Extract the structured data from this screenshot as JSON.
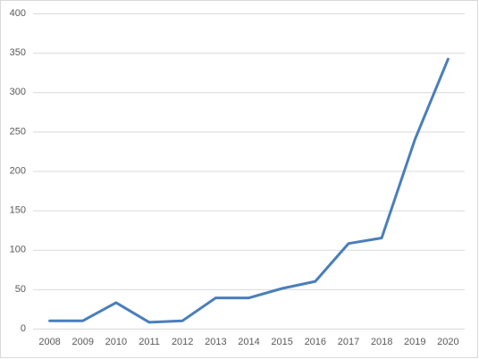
{
  "chart_data": {
    "type": "line",
    "categories": [
      "2008",
      "2009",
      "2010",
      "2011",
      "2012",
      "2013",
      "2014",
      "2015",
      "2016",
      "2017",
      "2018",
      "2019",
      "2020"
    ],
    "values": [
      10,
      10,
      33,
      8,
      10,
      39,
      39,
      51,
      60,
      108,
      115,
      240,
      342
    ],
    "color": "#4a7ebb",
    "ylim": [
      0,
      400
    ],
    "yticks": [
      0,
      50,
      100,
      150,
      200,
      250,
      300,
      350,
      400
    ],
    "grid": true
  }
}
